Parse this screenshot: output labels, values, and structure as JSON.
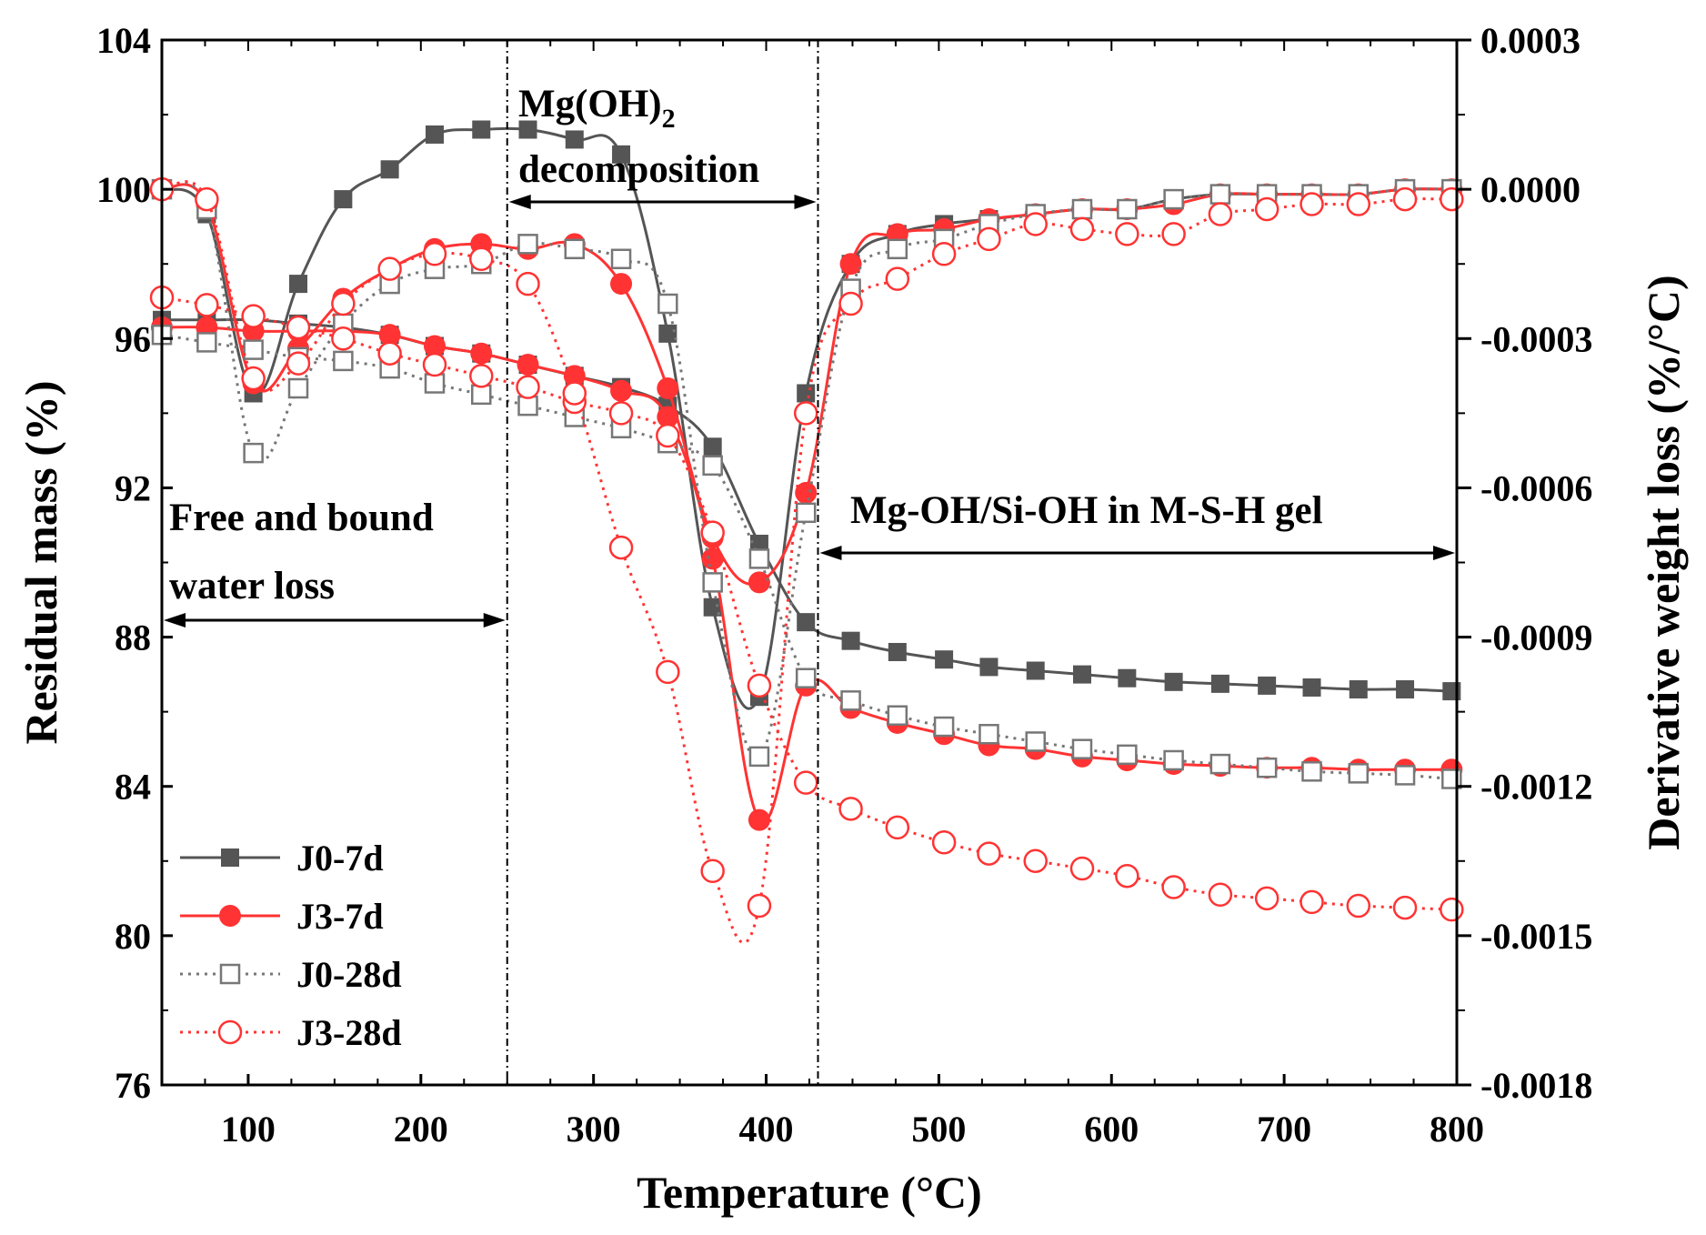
{
  "chart_data": {
    "type": "line",
    "xlabel": "Temperature (°C)",
    "ylabel_left": "Residual mass (%)",
    "ylabel_right": "Derivative weight loss (%/°C)",
    "xlim": [
      50,
      800
    ],
    "ylim_left": [
      76,
      104
    ],
    "ylim_right": [
      -0.0018,
      0.0003
    ],
    "x_ticks": [
      100,
      200,
      300,
      400,
      500,
      600,
      700,
      800
    ],
    "x_tick_labels": [
      "100",
      "200",
      "300",
      "400",
      "500",
      "600",
      "700",
      "800"
    ],
    "y_left_ticks": [
      76,
      80,
      84,
      88,
      92,
      96,
      100,
      104
    ],
    "y_left_tick_labels": [
      "76",
      "80",
      "84",
      "88",
      "92",
      "96",
      "100",
      "104"
    ],
    "y_right_ticks": [
      -0.0018,
      -0.0015,
      -0.0012,
      -0.0009,
      -0.0006,
      -0.0003,
      0.0,
      0.0003
    ],
    "y_right_tick_labels": [
      "-0.0018",
      "-0.0015",
      "-0.0012",
      "-0.0009",
      "-0.0006",
      "-0.0003",
      "0.0000",
      "0.0003"
    ],
    "grid": false,
    "legend_position": "bottom-left",
    "vlines": [
      250,
      430
    ],
    "annotations": {
      "free_water_line1": "Free and bound",
      "free_water_line2": "water loss",
      "mgoh_prefix": "Mg(OH)",
      "mgoh_sub": "2",
      "mgoh_line2": "decomposition",
      "msh": "Mg-OH/Si-OH in M-S-H gel"
    },
    "series": [
      {
        "name": "J0-7d",
        "color": "#555555",
        "line_style": "solid",
        "marker": "filled-square",
        "tg": [
          [
            50,
            96.5
          ],
          [
            76,
            96.5
          ],
          [
            103,
            96.5
          ],
          [
            129,
            96.4
          ],
          [
            155,
            96.3
          ],
          [
            182,
            96.1
          ],
          [
            208,
            95.8
          ],
          [
            235,
            95.6
          ],
          [
            262,
            95.3
          ],
          [
            289,
            95.0
          ],
          [
            316,
            94.7
          ],
          [
            343,
            94.2
          ],
          [
            369,
            93.1
          ],
          [
            396,
            90.5
          ],
          [
            423,
            88.4
          ],
          [
            449,
            87.9
          ],
          [
            476,
            87.6
          ],
          [
            503,
            87.4
          ],
          [
            529,
            87.2
          ],
          [
            556,
            87.1
          ],
          [
            583,
            87.0
          ],
          [
            609,
            86.9
          ],
          [
            636,
            86.8
          ],
          [
            663,
            86.75
          ],
          [
            690,
            86.7
          ],
          [
            716,
            86.65
          ],
          [
            743,
            86.6
          ],
          [
            770,
            86.6
          ],
          [
            797,
            86.55
          ]
        ],
        "dtg": [
          [
            50,
            0.0
          ],
          [
            76,
            -5e-05
          ],
          [
            103,
            -0.00041
          ],
          [
            129,
            -0.00019
          ],
          [
            155,
            -2e-05
          ],
          [
            182,
            4e-05
          ],
          [
            208,
            0.00011
          ],
          [
            235,
            0.00012
          ],
          [
            262,
            0.00012
          ],
          [
            289,
            0.0001
          ],
          [
            316,
            7e-05
          ],
          [
            343,
            -0.00029
          ],
          [
            369,
            -0.00084
          ],
          [
            396,
            -0.00102
          ],
          [
            423,
            -0.00041
          ],
          [
            449,
            -0.00015
          ],
          [
            476,
            -9e-05
          ],
          [
            503,
            -7e-05
          ],
          [
            529,
            -6e-05
          ],
          [
            556,
            -5e-05
          ],
          [
            583,
            -4e-05
          ],
          [
            609,
            -4e-05
          ],
          [
            636,
            -2e-05
          ],
          [
            663,
            -1e-05
          ],
          [
            690,
            -1e-05
          ],
          [
            716,
            -1e-05
          ],
          [
            743,
            -1e-05
          ],
          [
            770,
            0.0
          ],
          [
            797,
            0.0
          ]
        ]
      },
      {
        "name": "J3-7d",
        "color": "#ff3333",
        "line_style": "solid",
        "marker": "filled-circle",
        "tg": [
          [
            50,
            96.3
          ],
          [
            76,
            96.3
          ],
          [
            103,
            96.2
          ],
          [
            129,
            96.2
          ],
          [
            155,
            96.2
          ],
          [
            182,
            96.1
          ],
          [
            208,
            95.8
          ],
          [
            235,
            95.6
          ],
          [
            262,
            95.3
          ],
          [
            289,
            95.0
          ],
          [
            316,
            94.6
          ],
          [
            343,
            93.9
          ],
          [
            369,
            90.1
          ],
          [
            396,
            83.1
          ],
          [
            423,
            86.7
          ],
          [
            449,
            86.1
          ],
          [
            476,
            85.7
          ],
          [
            503,
            85.4
          ],
          [
            529,
            85.1
          ],
          [
            556,
            85.0
          ],
          [
            583,
            84.8
          ],
          [
            609,
            84.7
          ],
          [
            636,
            84.6
          ],
          [
            663,
            84.55
          ],
          [
            690,
            84.5
          ],
          [
            716,
            84.5
          ],
          [
            743,
            84.45
          ],
          [
            770,
            84.45
          ],
          [
            797,
            84.45
          ]
        ],
        "dtg": [
          [
            50,
            0.0
          ],
          [
            76,
            -3e-05
          ],
          [
            103,
            -0.00039
          ],
          [
            129,
            -0.00032
          ],
          [
            155,
            -0.00022
          ],
          [
            182,
            -0.00016
          ],
          [
            208,
            -0.00012
          ],
          [
            235,
            -0.00011
          ],
          [
            262,
            -0.00012
          ],
          [
            289,
            -0.00011
          ],
          [
            316,
            -0.00019
          ],
          [
            343,
            -0.0004
          ],
          [
            369,
            -0.0007
          ],
          [
            396,
            -0.00079
          ],
          [
            423,
            -0.00061
          ],
          [
            449,
            -0.00015
          ],
          [
            476,
            -9e-05
          ],
          [
            503,
            -8e-05
          ],
          [
            529,
            -6e-05
          ],
          [
            556,
            -5e-05
          ],
          [
            583,
            -4e-05
          ],
          [
            609,
            -4e-05
          ],
          [
            636,
            -3e-05
          ],
          [
            663,
            -1e-05
          ],
          [
            690,
            -1e-05
          ],
          [
            716,
            -1e-05
          ],
          [
            743,
            -1e-05
          ],
          [
            770,
            0.0
          ],
          [
            797,
            0.0
          ]
        ]
      },
      {
        "name": "J0-28d",
        "color": "#777777",
        "line_style": "dotted",
        "marker": "open-square",
        "tg": [
          [
            50,
            96.1
          ],
          [
            76,
            95.9
          ],
          [
            103,
            95.7
          ],
          [
            129,
            95.5
          ],
          [
            155,
            95.4
          ],
          [
            182,
            95.2
          ],
          [
            208,
            94.8
          ],
          [
            235,
            94.5
          ],
          [
            262,
            94.2
          ],
          [
            289,
            93.9
          ],
          [
            316,
            93.6
          ],
          [
            343,
            93.2
          ],
          [
            369,
            92.6
          ],
          [
            396,
            90.1
          ],
          [
            423,
            86.9
          ],
          [
            449,
            86.3
          ],
          [
            476,
            85.9
          ],
          [
            503,
            85.6
          ],
          [
            529,
            85.4
          ],
          [
            556,
            85.2
          ],
          [
            583,
            85.0
          ],
          [
            609,
            84.85
          ],
          [
            636,
            84.7
          ],
          [
            663,
            84.6
          ],
          [
            690,
            84.5
          ],
          [
            716,
            84.4
          ],
          [
            743,
            84.35
          ],
          [
            770,
            84.3
          ],
          [
            797,
            84.2
          ]
        ],
        "dtg": [
          [
            50,
            0.0
          ],
          [
            76,
            -4e-05
          ],
          [
            103,
            -0.00053
          ],
          [
            129,
            -0.0004
          ],
          [
            155,
            -0.00027
          ],
          [
            182,
            -0.00019
          ],
          [
            208,
            -0.00016
          ],
          [
            235,
            -0.00015
          ],
          [
            262,
            -0.00011
          ],
          [
            289,
            -0.00012
          ],
          [
            316,
            -0.00014
          ],
          [
            343,
            -0.00023
          ],
          [
            369,
            -0.00079
          ],
          [
            396,
            -0.00114
          ],
          [
            423,
            -0.00065
          ],
          [
            449,
            -0.0002
          ],
          [
            476,
            -0.00012
          ],
          [
            503,
            -0.0001
          ],
          [
            529,
            -7e-05
          ],
          [
            556,
            -5e-05
          ],
          [
            583,
            -4e-05
          ],
          [
            609,
            -4e-05
          ],
          [
            636,
            -2e-05
          ],
          [
            663,
            -1e-05
          ],
          [
            690,
            -1e-05
          ],
          [
            716,
            -1e-05
          ],
          [
            743,
            -1e-05
          ],
          [
            770,
            0.0
          ],
          [
            797,
            0.0
          ]
        ]
      },
      {
        "name": "J3-28d",
        "color": "#ff3333",
        "line_style": "dotted",
        "marker": "open-circle",
        "tg": [
          [
            50,
            97.1
          ],
          [
            76,
            96.9
          ],
          [
            103,
            96.6
          ],
          [
            129,
            96.3
          ],
          [
            155,
            96.0
          ],
          [
            182,
            95.6
          ],
          [
            208,
            95.3
          ],
          [
            235,
            95.0
          ],
          [
            262,
            94.7
          ],
          [
            289,
            94.3
          ],
          [
            316,
            94.0
          ],
          [
            343,
            93.4
          ],
          [
            369,
            90.8
          ],
          [
            396,
            86.7
          ],
          [
            423,
            84.1
          ],
          [
            449,
            83.4
          ],
          [
            476,
            82.9
          ],
          [
            503,
            82.5
          ],
          [
            529,
            82.2
          ],
          [
            556,
            82.0
          ],
          [
            583,
            81.8
          ],
          [
            609,
            81.6
          ],
          [
            636,
            81.3
          ],
          [
            663,
            81.1
          ],
          [
            690,
            81.0
          ],
          [
            716,
            80.9
          ],
          [
            743,
            80.8
          ],
          [
            770,
            80.75
          ],
          [
            797,
            80.7
          ]
        ],
        "dtg": [
          [
            50,
            0.0
          ],
          [
            76,
            -2e-05
          ],
          [
            103,
            -0.00038
          ],
          [
            129,
            -0.00035
          ],
          [
            155,
            -0.00023
          ],
          [
            182,
            -0.00016
          ],
          [
            208,
            -0.00013
          ],
          [
            235,
            -0.00014
          ],
          [
            262,
            -0.00019
          ],
          [
            289,
            -0.00041
          ],
          [
            316,
            -0.00072
          ],
          [
            343,
            -0.00097
          ],
          [
            369,
            -0.00137
          ],
          [
            396,
            -0.00144
          ],
          [
            423,
            -0.00045
          ],
          [
            449,
            -0.00023
          ],
          [
            476,
            -0.00018
          ],
          [
            503,
            -0.00013
          ],
          [
            529,
            -0.0001
          ],
          [
            556,
            -7e-05
          ],
          [
            583,
            -8e-05
          ],
          [
            609,
            -9e-05
          ],
          [
            636,
            -9e-05
          ],
          [
            663,
            -5e-05
          ],
          [
            690,
            -4e-05
          ],
          [
            716,
            -3e-05
          ],
          [
            743,
            -3e-05
          ],
          [
            770,
            -2e-05
          ],
          [
            797,
            -2e-05
          ]
        ]
      }
    ]
  }
}
